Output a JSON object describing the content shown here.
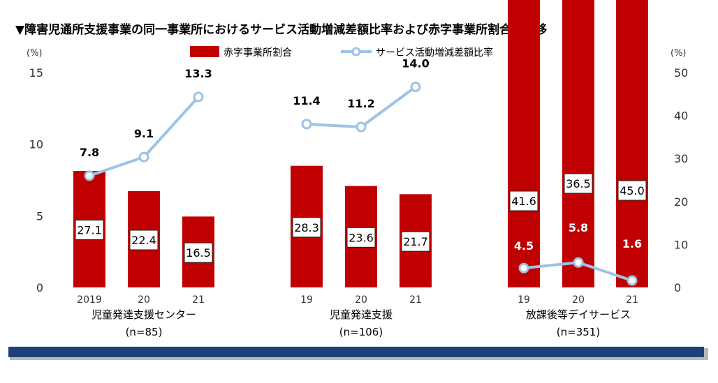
{
  "chart_data": {
    "type": "bar",
    "title": "▼障害児通所支援事業の同一事業所におけるサービス活動増減差額比率および赤字事業所割合の推移",
    "left_unit": "(%)",
    "right_unit": "(%)",
    "left_axis": {
      "range": [
        0,
        15
      ],
      "ticks": [
        "0",
        "5",
        "10",
        "15"
      ]
    },
    "right_axis": {
      "range": [
        0,
        50
      ],
      "ticks": [
        "0",
        "10",
        "20",
        "30",
        "40",
        "50"
      ]
    },
    "legend": {
      "bar_label": "赤字事業所割合",
      "line_label": "サービス活動増減差額比率",
      "placement": "top-center"
    },
    "colors": {
      "bar": "#c00000",
      "line": "#9dc3e6",
      "bottom_band": "#1f3f7a"
    },
    "groups": [
      {
        "name": "児童発達支援センター",
        "n": "(n=85)",
        "categories": [
          "2019",
          "20",
          "21"
        ],
        "bar_axis": "right",
        "line_axis": "left",
        "bar_values": [
          27.1,
          22.4,
          16.5
        ],
        "bar_labels": [
          "27.1",
          "22.4",
          "16.5"
        ],
        "line_values": [
          7.8,
          9.1,
          13.3
        ],
        "line_labels": [
          "7.8",
          "9.1",
          "13.3"
        ]
      },
      {
        "name": "児童発達支援",
        "n": "(n=106)",
        "categories": [
          "19",
          "20",
          "21"
        ],
        "bar_axis": "right",
        "line_axis": "left",
        "bar_values": [
          28.3,
          23.6,
          21.7
        ],
        "bar_labels": [
          "28.3",
          "23.6",
          "21.7"
        ],
        "line_values": [
          11.4,
          11.2,
          14.0
        ],
        "line_labels": [
          "11.4",
          "11.2",
          "14.0"
        ]
      },
      {
        "name": "放課後等デイサービス",
        "n": "(n=351)",
        "categories": [
          "19",
          "20",
          "21"
        ],
        "bar_axis": "left",
        "line_axis": "right",
        "bar_values": [
          41.6,
          36.5,
          45.0
        ],
        "bar_labels": [
          "41.6",
          "36.5",
          "45.0"
        ],
        "line_values": [
          4.5,
          5.8,
          1.6
        ],
        "line_labels": [
          "4.5",
          "5.8",
          "1.6"
        ]
      }
    ]
  }
}
